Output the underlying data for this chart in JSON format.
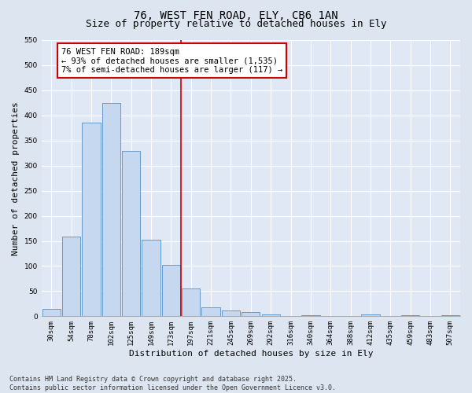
{
  "title1": "76, WEST FEN ROAD, ELY, CB6 1AN",
  "title2": "Size of property relative to detached houses in Ely",
  "xlabel": "Distribution of detached houses by size in Ely",
  "ylabel": "Number of detached properties",
  "categories": [
    "30sqm",
    "54sqm",
    "78sqm",
    "102sqm",
    "125sqm",
    "149sqm",
    "173sqm",
    "197sqm",
    "221sqm",
    "245sqm",
    "269sqm",
    "292sqm",
    "316sqm",
    "340sqm",
    "364sqm",
    "388sqm",
    "412sqm",
    "435sqm",
    "459sqm",
    "483sqm",
    "507sqm"
  ],
  "values": [
    15,
    158,
    385,
    425,
    330,
    152,
    103,
    55,
    18,
    12,
    8,
    4,
    1,
    2,
    1,
    0,
    3,
    0,
    2,
    0,
    2
  ],
  "bar_color": "#c5d8f0",
  "bar_edge_color": "#6699cc",
  "vline_x": 6.5,
  "vline_color": "#cc0000",
  "annotation_text": "76 WEST FEN ROAD: 189sqm\n← 93% of detached houses are smaller (1,535)\n7% of semi-detached houses are larger (117) →",
  "annotation_box_color": "#ffffff",
  "annotation_box_edge_color": "#cc0000",
  "ylim": [
    0,
    550
  ],
  "yticks": [
    0,
    50,
    100,
    150,
    200,
    250,
    300,
    350,
    400,
    450,
    500,
    550
  ],
  "fig_bg_color": "#dde5f0",
  "plot_bg_color": "#e0e8f5",
  "footer1": "Contains HM Land Registry data © Crown copyright and database right 2025.",
  "footer2": "Contains public sector information licensed under the Open Government Licence v3.0.",
  "title_fontsize": 10,
  "subtitle_fontsize": 9,
  "axis_label_fontsize": 8,
  "tick_fontsize": 6.5,
  "annotation_fontsize": 7.5,
  "footer_fontsize": 6
}
